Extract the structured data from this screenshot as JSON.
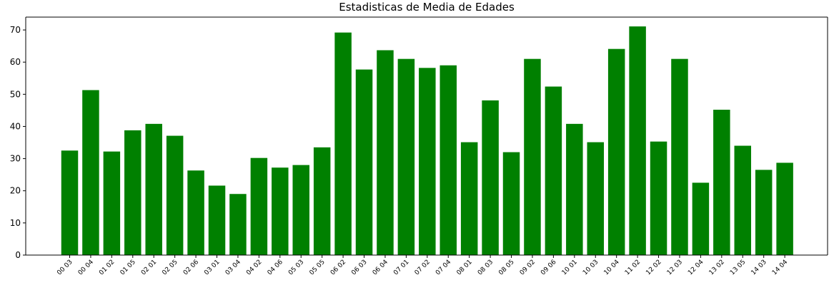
{
  "chart_data": {
    "type": "bar",
    "title": "Estadisticas de Media de Edades",
    "xlabel": "",
    "ylabel": "",
    "ylim": [
      0,
      74
    ],
    "yticks": [
      0,
      10,
      20,
      30,
      40,
      50,
      60,
      70
    ],
    "grid": false,
    "bar_color": "#008000",
    "categories": [
      "00 03",
      "00 04",
      "01 02",
      "01 05",
      "02 01",
      "02 05",
      "02 06",
      "03 01",
      "03 04",
      "04 02",
      "04 06",
      "05 03",
      "05 05",
      "06 02",
      "06 03",
      "06 04",
      "07 01",
      "07 02",
      "07 04",
      "08 01",
      "08 03",
      "08 05",
      "09 02",
      "09 06",
      "10 01",
      "10 03",
      "10 04",
      "11 02",
      "12 02",
      "12 03",
      "12 04",
      "13 02",
      "13 05",
      "14 03",
      "14 04"
    ],
    "values": [
      32.5,
      51.3,
      32.2,
      38.8,
      40.8,
      37.1,
      26.3,
      21.6,
      19.0,
      30.2,
      27.2,
      28.0,
      33.5,
      69.2,
      57.7,
      63.7,
      61.0,
      58.2,
      59.0,
      35.1,
      48.1,
      32.0,
      61.0,
      52.4,
      40.8,
      35.1,
      64.1,
      71.1,
      35.3,
      61.0,
      22.5,
      45.2,
      34.0,
      26.5,
      28.7
    ]
  }
}
